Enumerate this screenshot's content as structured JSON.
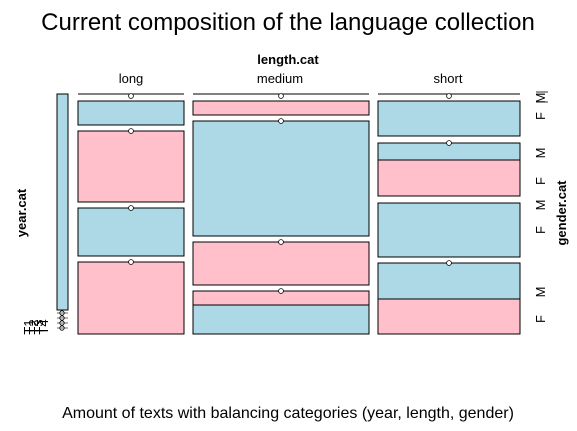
{
  "title": "Current composition of the language collection",
  "caption": "Amount of texts with balancing categories (year, length, gender)",
  "colors": {
    "M": "#add8e6",
    "F": "#ffc0cb",
    "stroke": "#000000",
    "tick": "#555555"
  },
  "chart_data": {
    "type": "mosaic",
    "title": "Current composition of the language collection",
    "variables": {
      "top": "length.cat",
      "left": "year.cat",
      "right": "gender.cat"
    },
    "columns": [
      "long",
      "medium",
      "short"
    ],
    "year_levels": [
      "T1",
      "T2",
      "T3",
      "T4"
    ],
    "gender_levels": [
      "M",
      "F"
    ],
    "right_axis_labels": [
      "M",
      "F",
      "M",
      "F",
      "M",
      "F",
      "M",
      "F"
    ],
    "row_labels": [
      "T1",
      "T2",
      "T3",
      "T4"
    ],
    "cells": [
      {
        "length": "long",
        "year": "T1",
        "gender": "M",
        "proportion": 0.0
      },
      {
        "length": "long",
        "year": "T1",
        "gender": "F",
        "proportion": 0.0
      },
      {
        "length": "long",
        "year": "T2",
        "gender": "M",
        "proportion": 0.0
      },
      {
        "length": "long",
        "year": "T2",
        "gender": "F",
        "proportion": 0.0
      },
      {
        "length": "long",
        "year": "T3",
        "gender": "M",
        "proportion": 0.0
      },
      {
        "length": "long",
        "year": "T3",
        "gender": "F",
        "proportion": 0.0
      },
      {
        "length": "long",
        "year": "T4",
        "gender": "M",
        "proportion": 0.109
      },
      {
        "length": "long",
        "year": "T4",
        "gender": "F",
        "proportion": 0.309
      },
      {
        "length": "long",
        "year": "T4",
        "gender": "M",
        "proportion": 0.209
      },
      {
        "length": "long",
        "year": "T4",
        "gender": "F",
        "proportion": 0.318
      },
      {
        "length": "medium",
        "year": "T1",
        "gender": "M",
        "proportion": 0.118
      },
      {
        "length": "medium",
        "year": "T1",
        "gender": "F",
        "proportion": 0.064
      },
      {
        "length": "medium",
        "year": "T2",
        "gender": "M",
        "proportion": 0.0
      },
      {
        "length": "medium",
        "year": "T2",
        "gender": "F",
        "proportion": 0.191
      },
      {
        "length": "medium",
        "year": "T3",
        "gender": "M",
        "proportion": 0.527
      },
      {
        "length": "medium",
        "year": "T3",
        "gender": "F",
        "proportion": 0.0
      },
      {
        "length": "medium",
        "year": "T4",
        "gender": "M",
        "proportion": 0.0
      },
      {
        "length": "medium",
        "year": "T4",
        "gender": "F",
        "proportion": 0.064
      },
      {
        "length": "short",
        "year": "T1",
        "gender": "M",
        "proportion": 0.155
      },
      {
        "length": "short",
        "year": "T1",
        "gender": "F",
        "proportion": 0.145
      },
      {
        "length": "short",
        "year": "T2",
        "gender": "M",
        "proportion": 0.245
      },
      {
        "length": "short",
        "year": "T2",
        "gender": "F",
        "proportion": 0.164
      },
      {
        "length": "short",
        "year": "T3",
        "gender": "M",
        "proportion": 0.073
      },
      {
        "length": "short",
        "year": "T3",
        "gender": "F",
        "proportion": 0.0
      },
      {
        "length": "short",
        "year": "T4",
        "gender": "M",
        "proportion": 0.164
      },
      {
        "length": "short",
        "year": "T4",
        "gender": "F",
        "proportion": 0.0
      }
    ]
  }
}
